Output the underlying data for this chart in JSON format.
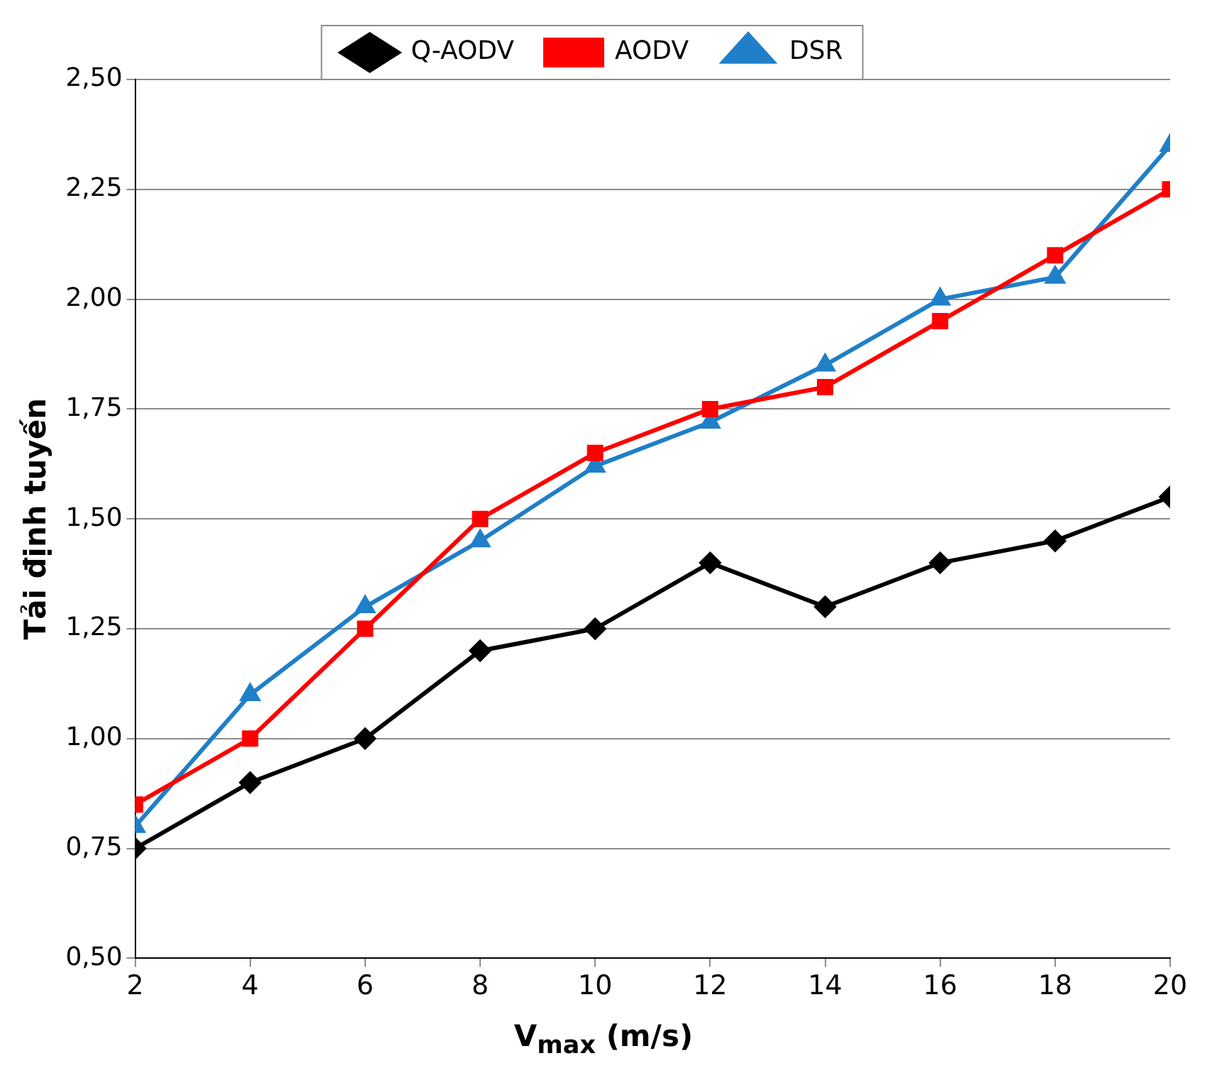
{
  "chart_data": {
    "type": "line",
    "xlabel": "V$_{max}$ (m/s)",
    "ylabel": "Tải định tuyến",
    "x": [
      2,
      4,
      6,
      8,
      10,
      12,
      14,
      16,
      18,
      20
    ],
    "xlim": [
      2,
      20
    ],
    "xticks": [
      2,
      4,
      6,
      8,
      10,
      12,
      14,
      16,
      18,
      20
    ],
    "ylim": [
      0.5,
      2.5
    ],
    "yticks": [
      {
        "value": 0.5,
        "label": "0,50"
      },
      {
        "value": 0.75,
        "label": "0,75"
      },
      {
        "value": 1,
        "label": "1,00"
      },
      {
        "value": 1.25,
        "label": "1,25"
      },
      {
        "value": 1.5,
        "label": "1,50"
      },
      {
        "value": 1.75,
        "label": "1,75"
      },
      {
        "value": 2,
        "label": "2,00"
      },
      {
        "value": 2.25,
        "label": "2,25"
      },
      {
        "value": 2.5,
        "label": "2,50"
      }
    ],
    "grid": "y",
    "legend": "top",
    "series": [
      {
        "name": "Q-AODV",
        "color": "#000000",
        "marker": "diamond",
        "values": [
          0.75,
          0.9,
          1.0,
          1.2,
          1.25,
          1.4,
          1.3,
          1.4,
          1.45,
          1.55
        ]
      },
      {
        "name": "AODV",
        "color": "#ff0000",
        "marker": "square",
        "values": [
          0.85,
          1.0,
          1.25,
          1.5,
          1.65,
          1.75,
          1.8,
          1.95,
          2.1,
          2.25
        ]
      },
      {
        "name": "DSR",
        "color": "#1f7fc8",
        "marker": "triangle",
        "values": [
          0.8,
          1.1,
          1.3,
          1.45,
          1.62,
          1.72,
          1.85,
          2.0,
          2.05,
          2.35
        ]
      }
    ]
  }
}
